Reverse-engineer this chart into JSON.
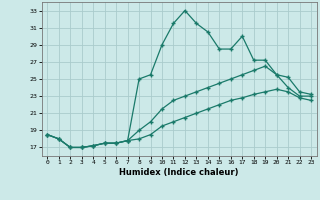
{
  "title": "",
  "xlabel": "Humidex (Indice chaleur)",
  "ylabel": "",
  "bg_color": "#cce9e8",
  "grid_color": "#aacccc",
  "line_color": "#1a7a6a",
  "xlim": [
    -0.5,
    23.5
  ],
  "ylim": [
    16.0,
    34.0
  ],
  "xticks": [
    0,
    1,
    2,
    3,
    4,
    5,
    6,
    7,
    8,
    9,
    10,
    11,
    12,
    13,
    14,
    15,
    16,
    17,
    18,
    19,
    20,
    21,
    22,
    23
  ],
  "yticks": [
    17,
    19,
    21,
    23,
    25,
    27,
    29,
    31,
    33
  ],
  "series1_x": [
    0,
    1,
    2,
    3,
    4,
    5,
    6,
    7,
    8,
    9,
    10,
    11,
    12,
    13,
    14,
    15,
    16,
    17,
    18,
    19,
    20,
    21,
    22,
    23
  ],
  "series1_y": [
    18.5,
    18.0,
    17.0,
    17.0,
    17.2,
    17.5,
    17.5,
    17.8,
    25.0,
    25.5,
    29.0,
    31.5,
    33.0,
    31.5,
    30.5,
    28.5,
    28.5,
    30.0,
    27.2,
    27.2,
    25.5,
    24.0,
    23.0,
    23.0
  ],
  "series2_x": [
    0,
    1,
    2,
    3,
    4,
    5,
    6,
    7,
    8,
    9,
    10,
    11,
    12,
    13,
    14,
    15,
    16,
    17,
    18,
    19,
    20,
    21,
    22,
    23
  ],
  "series2_y": [
    18.5,
    18.0,
    17.0,
    17.0,
    17.2,
    17.5,
    17.5,
    17.8,
    19.0,
    20.0,
    21.5,
    22.5,
    23.0,
    23.5,
    24.0,
    24.5,
    25.0,
    25.5,
    26.0,
    26.5,
    25.5,
    25.2,
    23.5,
    23.2
  ],
  "series3_x": [
    0,
    1,
    2,
    3,
    4,
    5,
    6,
    7,
    8,
    9,
    10,
    11,
    12,
    13,
    14,
    15,
    16,
    17,
    18,
    19,
    20,
    21,
    22,
    23
  ],
  "series3_y": [
    18.5,
    18.0,
    17.0,
    17.0,
    17.2,
    17.5,
    17.5,
    17.8,
    18.0,
    18.5,
    19.5,
    20.0,
    20.5,
    21.0,
    21.5,
    22.0,
    22.5,
    22.8,
    23.2,
    23.5,
    23.8,
    23.5,
    22.8,
    22.5
  ]
}
